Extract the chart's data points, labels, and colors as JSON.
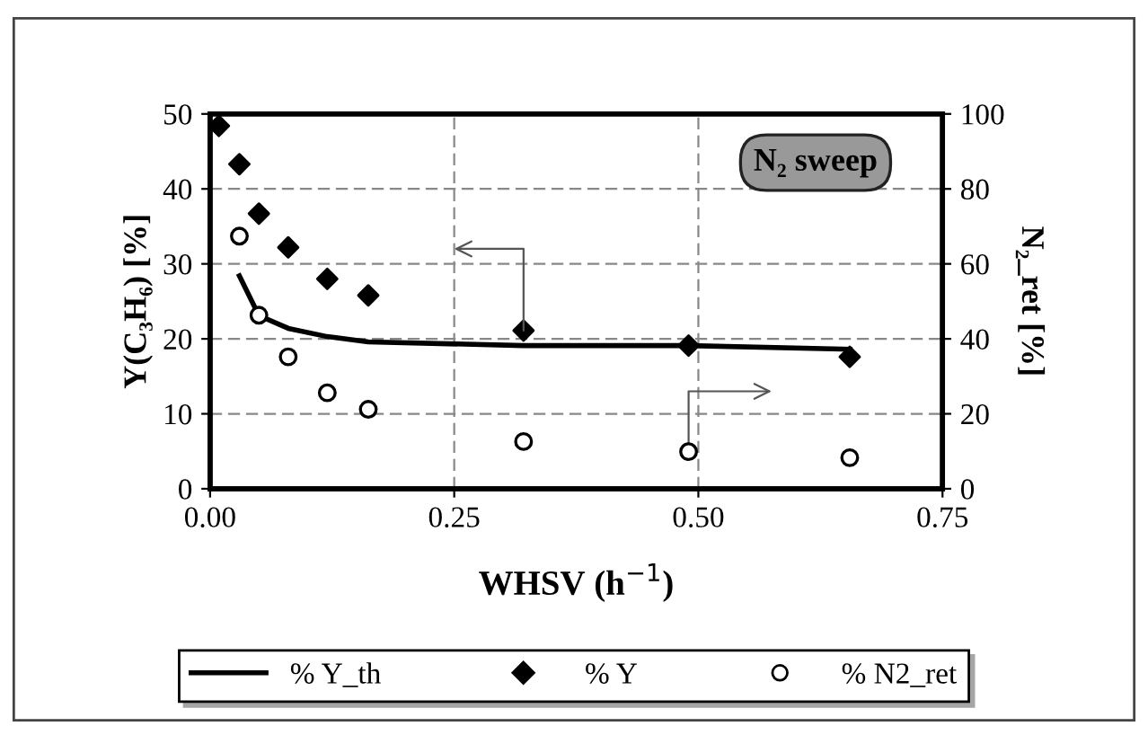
{
  "chart_data": {
    "type": "scatter",
    "xlabel": "WHSV (h$^{−1}$)",
    "ylabel": "Y(C₃H₆) [%]",
    "y2label": "N₂_ret [%]",
    "annotations": [
      "N₂ sweep"
    ],
    "xlim": [
      0,
      0.75
    ],
    "xticks": [
      {
        "value": 0,
        "label": "0.00"
      },
      {
        "value": 0.25,
        "label": "0.25"
      },
      {
        "value": 0.5,
        "label": "0.50"
      },
      {
        "value": 0.75,
        "label": "0.75"
      }
    ],
    "ylim": [
      0,
      50
    ],
    "yticks": [
      0,
      10,
      20,
      30,
      40,
      50
    ],
    "y2lim": [
      0,
      100
    ],
    "y2ticks": [
      0,
      20,
      40,
      60,
      80,
      100
    ],
    "grid": true,
    "legend": "bottom",
    "series": [
      {
        "name": "% Y_th",
        "type": "line",
        "color": "#000000",
        "marker": "none",
        "line_style": "solid",
        "x": [
          0.03,
          0.05,
          0.08,
          0.12,
          0.162,
          0.321,
          0.49,
          0.655
        ],
        "values": [
          28.4,
          23.1,
          21.4,
          20.3,
          19.6,
          19.1,
          19.1,
          18.6
        ]
      },
      {
        "name": "% Y",
        "color": "#000000",
        "marker": "diamond",
        "x": [
          0.009,
          0.03,
          0.05,
          0.08,
          0.12,
          0.162,
          0.321,
          0.49,
          0.655
        ],
        "values": [
          48.4,
          43.3,
          36.7,
          32.2,
          28.0,
          25.8,
          21.1,
          19.1,
          17.6
        ]
      },
      {
        "name": "% N2_ret",
        "color": "#000000",
        "marker": "circle",
        "axis": "y2",
        "x": [
          0.03,
          0.05,
          0.08,
          0.12,
          0.162,
          0.321,
          0.49,
          0.655
        ],
        "values": [
          67.4,
          46.3,
          35.2,
          25.6,
          21.2,
          12.6,
          9.9,
          8.3
        ]
      }
    ]
  }
}
